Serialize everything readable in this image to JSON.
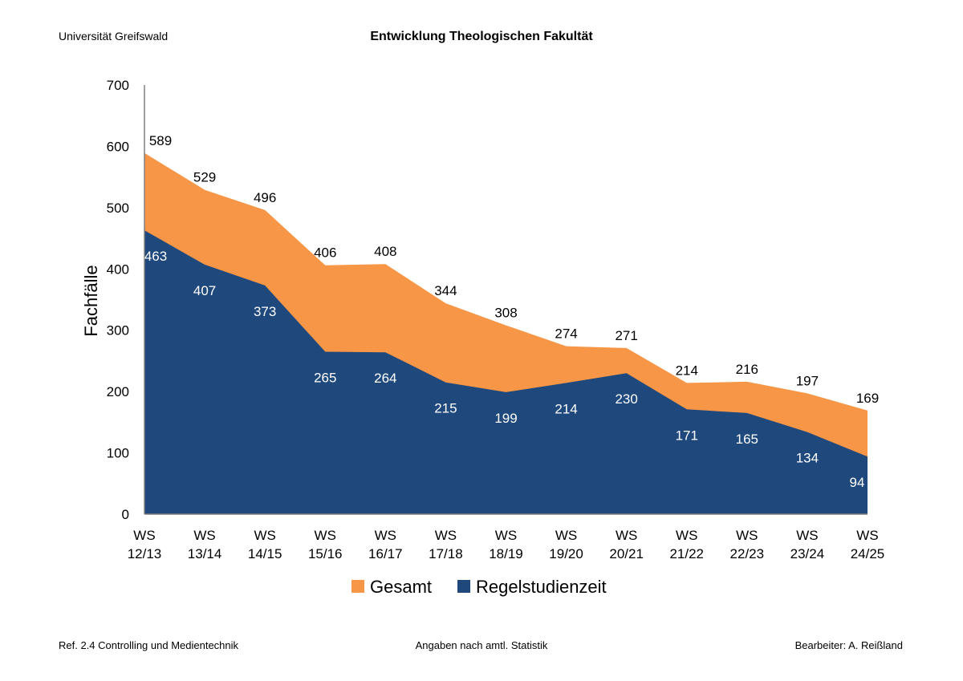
{
  "header": {
    "university": "Universität Greifswald",
    "title": "Entwicklung  Theologischen Fakultät"
  },
  "footer": {
    "left": "Ref. 2.4 Controlling und Medientechnik",
    "center": "Angaben nach amtl. Statistik",
    "right": "Bearbeiter: A. Reißland"
  },
  "chart_data": {
    "type": "area",
    "title": "Entwicklung  Theologischen Fakultät",
    "xlabel": "",
    "ylabel": "Fachfälle",
    "ylim": [
      0,
      700
    ],
    "yticks": [
      0,
      100,
      200,
      300,
      400,
      500,
      600,
      700
    ],
    "grid": false,
    "legend_position": "bottom",
    "categories": [
      [
        "WS",
        "12/13"
      ],
      [
        "WS",
        "13/14"
      ],
      [
        "WS",
        "14/15"
      ],
      [
        "WS",
        "15/16"
      ],
      [
        "WS",
        "16/17"
      ],
      [
        "WS",
        "17/18"
      ],
      [
        "WS",
        "18/19"
      ],
      [
        "WS",
        "19/20"
      ],
      [
        "WS",
        "20/21"
      ],
      [
        "WS",
        "21/22"
      ],
      [
        "WS",
        "22/23"
      ],
      [
        "WS",
        "23/24"
      ],
      [
        "WS",
        "24/25"
      ]
    ],
    "series": [
      {
        "name": "Gesamt",
        "color": "#F79646",
        "values": [
          589,
          529,
          496,
          406,
          408,
          344,
          308,
          274,
          271,
          214,
          216,
          197,
          169
        ]
      },
      {
        "name": "Regelstudienzeit",
        "color": "#1F497D",
        "values": [
          463,
          407,
          373,
          265,
          264,
          215,
          199,
          214,
          230,
          171,
          165,
          134,
          94
        ]
      }
    ]
  }
}
